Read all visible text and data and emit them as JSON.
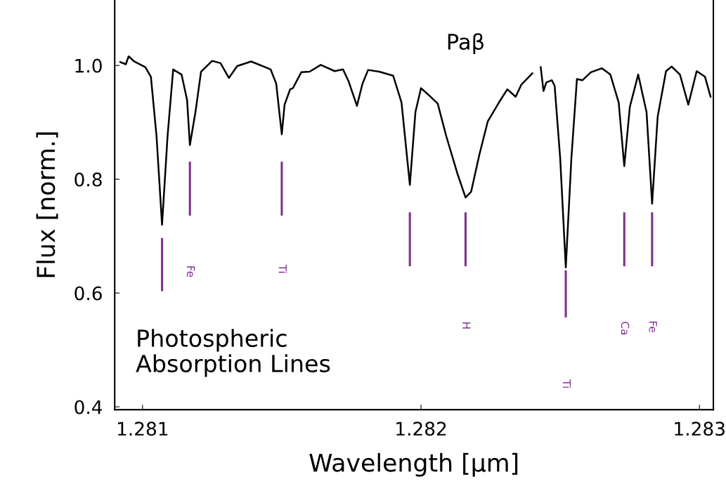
{
  "chart_data": {
    "type": "line",
    "xlabel": "Wavelength [µm]",
    "ylabel": "Flux [norm.]",
    "xlim": [
      1.2809,
      1.28305
    ],
    "ylim": [
      0.395,
      1.115
    ],
    "xticks": [
      1.281,
      1.282,
      1.283
    ],
    "yticks": [
      {
        "value": 0.4,
        "label": "0.4"
      },
      {
        "value": 0.6,
        "label": "0.6"
      },
      {
        "value": 0.8,
        "label": "0.8"
      },
      {
        "value": 1.0,
        "label": "1.0"
      }
    ],
    "grid": false,
    "marker": "none",
    "line_style": "solid",
    "series": [
      {
        "color": "#000000",
        "x": [
          1.28092,
          1.28094,
          1.28095,
          1.28097,
          1.28101,
          1.28103,
          1.28105,
          1.28107,
          1.28109,
          1.28111,
          1.28114,
          1.28116,
          1.28117,
          1.28119,
          1.28121,
          1.28125,
          1.28128,
          1.28131,
          1.28134,
          1.28139,
          1.28145,
          1.28146,
          1.28148,
          1.2815,
          1.28151,
          1.28153,
          1.28154,
          1.28157,
          1.2816,
          1.28164,
          1.28169,
          1.28172,
          1.28174,
          1.28177,
          1.28179,
          1.28181,
          1.28185,
          1.2819,
          1.28193,
          1.28196,
          1.28198,
          1.282,
          1.28203,
          1.28206,
          1.28209,
          1.28213,
          1.28216,
          1.28218,
          1.28221,
          1.28224,
          1.28228,
          1.28231,
          1.28234,
          1.28236,
          1.2824,
          1.28242,
          1.28243,
          1.28244,
          1.28245,
          1.28247,
          1.28248,
          1.2825,
          1.28252,
          1.28254,
          1.28256,
          1.28258,
          1.28261,
          1.28265,
          1.28268,
          1.28271,
          1.28273,
          1.28275,
          1.28278,
          1.28281,
          1.28283,
          1.28285,
          1.28288,
          1.2829,
          1.28293,
          1.28296,
          1.28299,
          1.28302,
          1.28304
        ],
        "values": [
          1.006,
          1.002,
          1.016,
          1.007,
          0.997,
          0.98,
          0.877,
          0.72,
          0.877,
          0.993,
          0.984,
          0.939,
          0.86,
          0.918,
          0.989,
          1.008,
          1.004,
          0.978,
          0.999,
          1.007,
          0.995,
          0.993,
          0.968,
          0.879,
          0.931,
          0.958,
          0.96,
          0.988,
          0.989,
          1.001,
          0.99,
          0.993,
          0.972,
          0.929,
          0.968,
          0.992,
          0.989,
          0.982,
          0.935,
          0.79,
          0.918,
          0.96,
          0.947,
          0.933,
          0.877,
          0.811,
          0.768,
          0.778,
          0.844,
          0.902,
          0.935,
          0.958,
          0.945,
          0.966,
          0.986,
          null,
          0.997,
          0.955,
          0.97,
          0.974,
          0.964,
          0.836,
          0.645,
          0.836,
          0.976,
          0.974,
          0.988,
          0.995,
          0.984,
          0.935,
          0.823,
          0.927,
          0.984,
          0.918,
          0.757,
          0.91,
          0.99,
          0.998,
          0.984,
          0.931,
          0.99,
          0.98,
          0.945
        ]
      },
      {
        "color": "#7e2f8e",
        "x": [
          1.28107,
          1.28107
        ],
        "values": [
          0.695,
          0.605
        ]
      },
      {
        "color": "#7e2f8e",
        "x": [
          1.28117,
          1.28117
        ],
        "values": [
          0.829,
          0.738
        ]
      },
      {
        "color": "#7e2f8e",
        "x": [
          1.2815,
          1.2815
        ],
        "values": [
          0.829,
          0.738
        ]
      },
      {
        "color": "#7e2f8e",
        "x": [
          1.28196,
          1.28196
        ],
        "values": [
          0.74,
          0.649
        ]
      },
      {
        "color": "#7e2f8e",
        "x": [
          1.28216,
          1.28216
        ],
        "values": [
          0.74,
          0.649
        ]
      },
      {
        "color": "#7e2f8e",
        "x": [
          1.28252,
          1.28252
        ],
        "values": [
          0.638,
          0.559
        ]
      },
      {
        "color": "#7e2f8e",
        "x": [
          1.28273,
          1.28273
        ],
        "values": [
          0.74,
          0.649
        ]
      },
      {
        "color": "#7e2f8e",
        "x": [
          1.28283,
          1.28283
        ],
        "values": [
          0.74,
          0.649
        ]
      }
    ],
    "annotations": [
      "Paβ",
      "Photospheric\nAbsorption Lines",
      "Fe",
      "Ti",
      "H",
      "Ti",
      "Ca",
      "Fe"
    ]
  }
}
